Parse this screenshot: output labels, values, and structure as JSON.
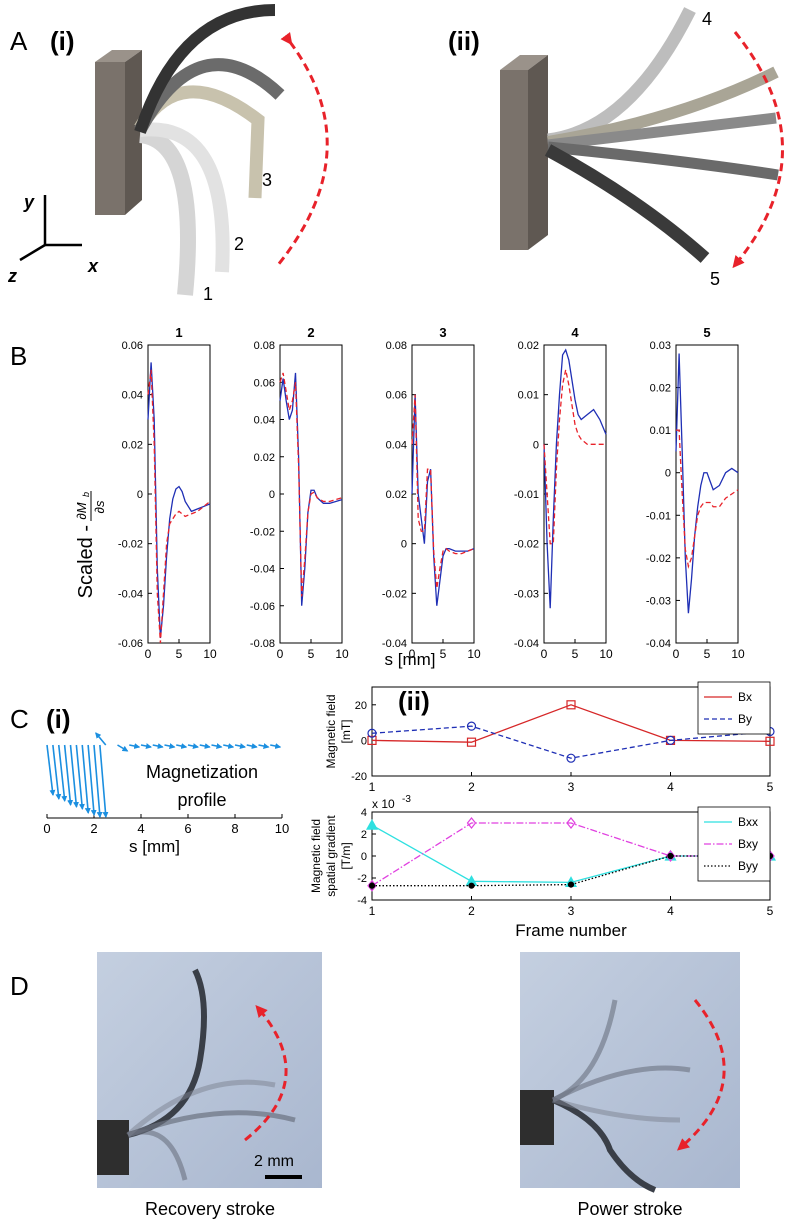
{
  "panel_a": {
    "label": "A",
    "sub_i": "(i)",
    "sub_ii": "(ii)",
    "axes": {
      "y": "y",
      "z": "z",
      "x": "x"
    },
    "frames": [
      "1",
      "2",
      "3",
      "4",
      "5"
    ]
  },
  "panel_b": {
    "label": "B",
    "ylabel": "Scaled -",
    "ylabel_numerator": "∂M",
    "ylabel_numerator_sub": "b",
    "ylabel_denominator": "∂s",
    "xlabel": "s [mm]"
  },
  "panel_c": {
    "label": "C",
    "sub_i": "(i)",
    "sub_ii": "(ii)"
  },
  "panel_d": {
    "label": "D",
    "scale_bar": "2 mm",
    "captions": [
      "Recovery stroke",
      "Power stroke"
    ]
  },
  "chart_data": [
    {
      "type": "line",
      "title": "1",
      "x": [
        0,
        0.5,
        1,
        1.5,
        2,
        2.5,
        3,
        3.5,
        4,
        4.5,
        5,
        5.5,
        6,
        7,
        8,
        9,
        10
      ],
      "xlim": [
        0,
        10
      ],
      "xticks": [
        0,
        5,
        10
      ],
      "ylim": [
        -0.06,
        0.06
      ],
      "yticks": [
        -0.06,
        -0.04,
        -0.02,
        0,
        0.02,
        0.04,
        0.06
      ],
      "series": [
        {
          "color": "#1f2fb5",
          "dash": "solid",
          "values": [
            0.03,
            0.053,
            0.03,
            -0.03,
            -0.058,
            -0.045,
            -0.025,
            -0.01,
            -0.002,
            0.002,
            0.003,
            0.001,
            -0.003,
            -0.007,
            -0.006,
            -0.005,
            -0.004
          ]
        },
        {
          "color": "#e8222a",
          "dash": "dashed",
          "values": [
            0.04,
            0.05,
            0.02,
            -0.04,
            -0.06,
            -0.04,
            -0.02,
            -0.012,
            -0.01,
            -0.008,
            -0.007,
            -0.008,
            -0.009,
            -0.008,
            -0.007,
            -0.005,
            -0.003
          ]
        }
      ]
    },
    {
      "type": "line",
      "title": "2",
      "x": [
        0,
        0.5,
        1,
        1.5,
        2,
        2.5,
        3,
        3.5,
        4,
        4.5,
        5,
        5.5,
        6,
        7,
        8,
        9,
        10
      ],
      "xlim": [
        0,
        10
      ],
      "xticks": [
        0,
        5,
        10
      ],
      "ylim": [
        -0.08,
        0.08
      ],
      "yticks": [
        -0.08,
        -0.06,
        -0.04,
        -0.02,
        0,
        0.02,
        0.04,
        0.06,
        0.08
      ],
      "series": [
        {
          "color": "#1f2fb5",
          "dash": "solid",
          "values": [
            0.05,
            0.062,
            0.05,
            0.04,
            0.045,
            0.065,
            0.02,
            -0.06,
            -0.04,
            -0.01,
            0.002,
            0.002,
            -0.002,
            -0.005,
            -0.005,
            -0.004,
            -0.003
          ]
        },
        {
          "color": "#e8222a",
          "dash": "dashed",
          "values": [
            0.06,
            0.065,
            0.055,
            0.045,
            0.05,
            0.06,
            0.015,
            -0.055,
            -0.035,
            -0.01,
            0,
            0.001,
            -0.002,
            -0.004,
            -0.004,
            -0.003,
            -0.002
          ]
        }
      ]
    },
    {
      "type": "line",
      "title": "3",
      "x": [
        0,
        0.5,
        1,
        1.5,
        2,
        2.5,
        3,
        3.5,
        4,
        4.5,
        5,
        5.5,
        6,
        7,
        8,
        9,
        10
      ],
      "xlim": [
        0,
        10
      ],
      "xticks": [
        0,
        5,
        10
      ],
      "ylim": [
        -0.04,
        0.08
      ],
      "yticks": [
        -0.04,
        -0.02,
        0,
        0.02,
        0.04,
        0.06,
        0.08
      ],
      "series": [
        {
          "color": "#1f2fb5",
          "dash": "solid",
          "values": [
            0.02,
            0.06,
            0.02,
            0.01,
            0,
            0.025,
            0.03,
            -0.005,
            -0.025,
            -0.015,
            -0.005,
            -0.002,
            -0.002,
            -0.003,
            -0.003,
            -0.003,
            -0.002
          ]
        },
        {
          "color": "#e8222a",
          "dash": "dashed",
          "values": [
            0.04,
            0.06,
            0.01,
            0.005,
            0.005,
            0.03,
            0.03,
            -0.003,
            -0.018,
            -0.01,
            -0.003,
            -0.002,
            -0.003,
            -0.004,
            -0.004,
            -0.003,
            -0.002
          ]
        }
      ]
    },
    {
      "type": "line",
      "title": "4",
      "x": [
        0,
        0.5,
        1,
        1.5,
        2,
        2.5,
        3,
        3.5,
        4,
        4.5,
        5,
        5.5,
        6,
        7,
        8,
        9,
        10
      ],
      "xlim": [
        0,
        10
      ],
      "xticks": [
        0,
        5,
        10
      ],
      "ylim": [
        -0.04,
        0.02
      ],
      "yticks": [
        -0.04,
        -0.03,
        -0.02,
        -0.01,
        0,
        0.01,
        0.02
      ],
      "series": [
        {
          "color": "#1f2fb5",
          "dash": "solid",
          "values": [
            0,
            -0.02,
            -0.033,
            -0.015,
            0,
            0.01,
            0.018,
            0.019,
            0.017,
            0.013,
            0.009,
            0.006,
            0.005,
            0.006,
            0.007,
            0.005,
            0.002
          ]
        },
        {
          "color": "#e8222a",
          "dash": "dashed",
          "values": [
            0,
            -0.01,
            -0.02,
            -0.02,
            -0.005,
            0.005,
            0.012,
            0.015,
            0.012,
            0.008,
            0.004,
            0.002,
            0.001,
            0,
            0,
            0,
            0
          ]
        }
      ]
    },
    {
      "type": "line",
      "title": "5",
      "x": [
        0,
        0.5,
        1,
        1.5,
        2,
        2.5,
        3,
        3.5,
        4,
        4.5,
        5,
        5.5,
        6,
        7,
        8,
        9,
        10
      ],
      "xlim": [
        0,
        10
      ],
      "xticks": [
        0,
        5,
        10
      ],
      "ylim": [
        -0.04,
        0.03
      ],
      "yticks": [
        -0.04,
        -0.03,
        -0.02,
        -0.01,
        0,
        0.01,
        0.02,
        0.03
      ],
      "series": [
        {
          "color": "#1f2fb5",
          "dash": "solid",
          "values": [
            0.005,
            0.028,
            0.005,
            -0.02,
            -0.033,
            -0.025,
            -0.015,
            -0.008,
            -0.003,
            0,
            0,
            -0.002,
            -0.004,
            -0.003,
            0,
            0.001,
            0
          ]
        },
        {
          "color": "#e8222a",
          "dash": "dashed",
          "values": [
            0.01,
            0.01,
            -0.005,
            -0.018,
            -0.022,
            -0.02,
            -0.015,
            -0.01,
            -0.008,
            -0.007,
            -0.007,
            -0.007,
            -0.008,
            -0.008,
            -0.006,
            -0.005,
            -0.004
          ]
        }
      ]
    },
    {
      "type": "quiver",
      "color": "#1b8fe0",
      "annotation": [
        "Magnetization",
        "profile"
      ],
      "xlabel": "s [mm]",
      "xlim": [
        0,
        10
      ],
      "xticks": [
        0,
        2,
        4,
        6,
        8,
        10
      ],
      "x": [
        0,
        0.25,
        0.5,
        0.75,
        1,
        1.25,
        1.5,
        1.75,
        2,
        2.25,
        2.5,
        3,
        3.5,
        4,
        4.5,
        5,
        5.5,
        6,
        6.5,
        7,
        7.5,
        8,
        8.5,
        9,
        9.5
      ],
      "u": [
        0.3,
        0.3,
        0.3,
        0.3,
        0.3,
        0.3,
        0.3,
        0.3,
        0.3,
        0.3,
        -0.5,
        0.5,
        0.5,
        0.5,
        0.5,
        0.5,
        0.5,
        0.5,
        0.5,
        0.5,
        0.5,
        0.5,
        0.5,
        0.5,
        0.5
      ],
      "v": [
        -2.5,
        -2.7,
        -2.8,
        -3,
        -3.1,
        -3.2,
        -3.4,
        -3.5,
        -3.6,
        -3.6,
        0.6,
        -0.3,
        -0.1,
        -0.1,
        -0.1,
        -0.1,
        -0.1,
        -0.1,
        -0.1,
        -0.1,
        -0.1,
        -0.1,
        -0.1,
        -0.1,
        -0.1
      ]
    },
    {
      "type": "line",
      "ylabel": [
        "Magnetic field",
        "[mT]"
      ],
      "x": [
        1,
        2,
        3,
        4,
        5
      ],
      "xlim": [
        1,
        5
      ],
      "xticks": [
        1,
        2,
        3,
        4,
        5
      ],
      "ylim": [
        -20,
        30
      ],
      "yticks": [
        -20,
        0,
        20
      ],
      "legend": "upper right",
      "series": [
        {
          "name": "Bx",
          "color": "#d62728",
          "dash": "solid",
          "marker": "square",
          "values": [
            0,
            -1,
            20,
            0,
            -0.5
          ]
        },
        {
          "name": "By",
          "color": "#1f2fb5",
          "dash": "dashed",
          "marker": "circle",
          "values": [
            4,
            8,
            -10,
            0,
            5
          ]
        }
      ]
    },
    {
      "type": "line",
      "ylabel": [
        "Magnetic field",
        "spatial gradient",
        "[T/m]"
      ],
      "xlabel": "Frame number",
      "multiplier": "x 10",
      "multiplier_exp": "-3",
      "x": [
        1,
        2,
        3,
        4,
        5
      ],
      "xlim": [
        1,
        5
      ],
      "xticks": [
        1,
        2,
        3,
        4,
        5
      ],
      "ylim": [
        -4,
        4
      ],
      "yticks": [
        -4,
        -2,
        0,
        2,
        4
      ],
      "legend": "upper right",
      "series": [
        {
          "name": "Bxx",
          "color": "#2ee0e0",
          "dash": "solid",
          "marker": "triangle",
          "values": [
            2.8,
            -2.3,
            -2.4,
            0,
            0
          ]
        },
        {
          "name": "Bxy",
          "color": "#e040e0",
          "dash": "dashdot",
          "marker": "diamond",
          "values": [
            -2.7,
            3,
            3,
            0,
            0
          ]
        },
        {
          "name": "Byy",
          "color": "#000000",
          "dash": "dotted",
          "marker": "point",
          "values": [
            -2.7,
            -2.7,
            -2.6,
            0,
            0
          ]
        }
      ]
    }
  ]
}
